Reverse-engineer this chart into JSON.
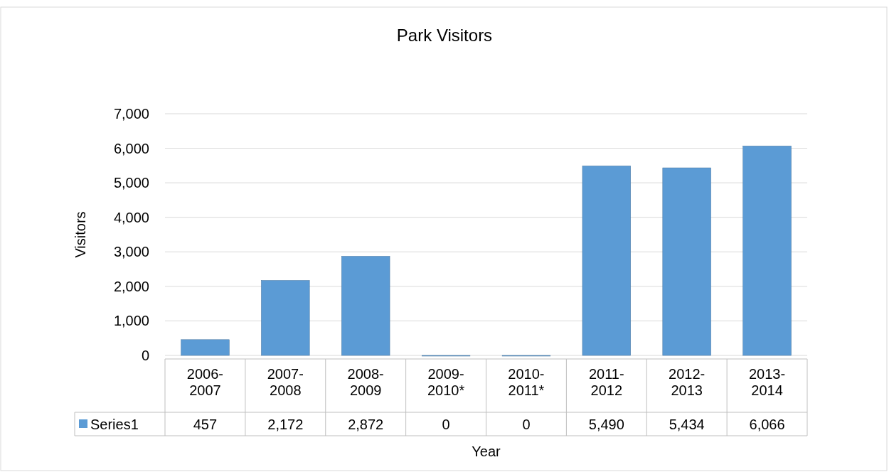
{
  "chart_data": {
    "type": "bar",
    "title": "Park Visitors",
    "xlabel": "Year",
    "ylabel": "Visitors",
    "categories": [
      "2006-\n2007",
      "2007-\n2008",
      "2008-\n2009",
      "2009-\n2010*",
      "2010-\n2011*",
      "2011-\n2012",
      "2012-\n2013",
      "2013-\n2014"
    ],
    "series": [
      {
        "name": "Series1",
        "color": "#5b9bd5",
        "values": [
          457,
          2172,
          2872,
          0,
          0,
          5490,
          5434,
          6066
        ],
        "value_labels": [
          "457",
          "2,172",
          "2,872",
          "0",
          "0",
          "5,490",
          "5,434",
          "6,066"
        ]
      }
    ],
    "ylim": [
      0,
      7000
    ],
    "yticks": [
      {
        "value": 0,
        "label": "0"
      },
      {
        "value": 1000,
        "label": "1,000"
      },
      {
        "value": 2000,
        "label": "2,000"
      },
      {
        "value": 3000,
        "label": "3,000"
      },
      {
        "value": 4000,
        "label": "4,000"
      },
      {
        "value": 5000,
        "label": "5,000"
      },
      {
        "value": 6000,
        "label": "6,000"
      },
      {
        "value": 7000,
        "label": "7,000"
      }
    ],
    "grid": "y",
    "legend": "bottom"
  }
}
